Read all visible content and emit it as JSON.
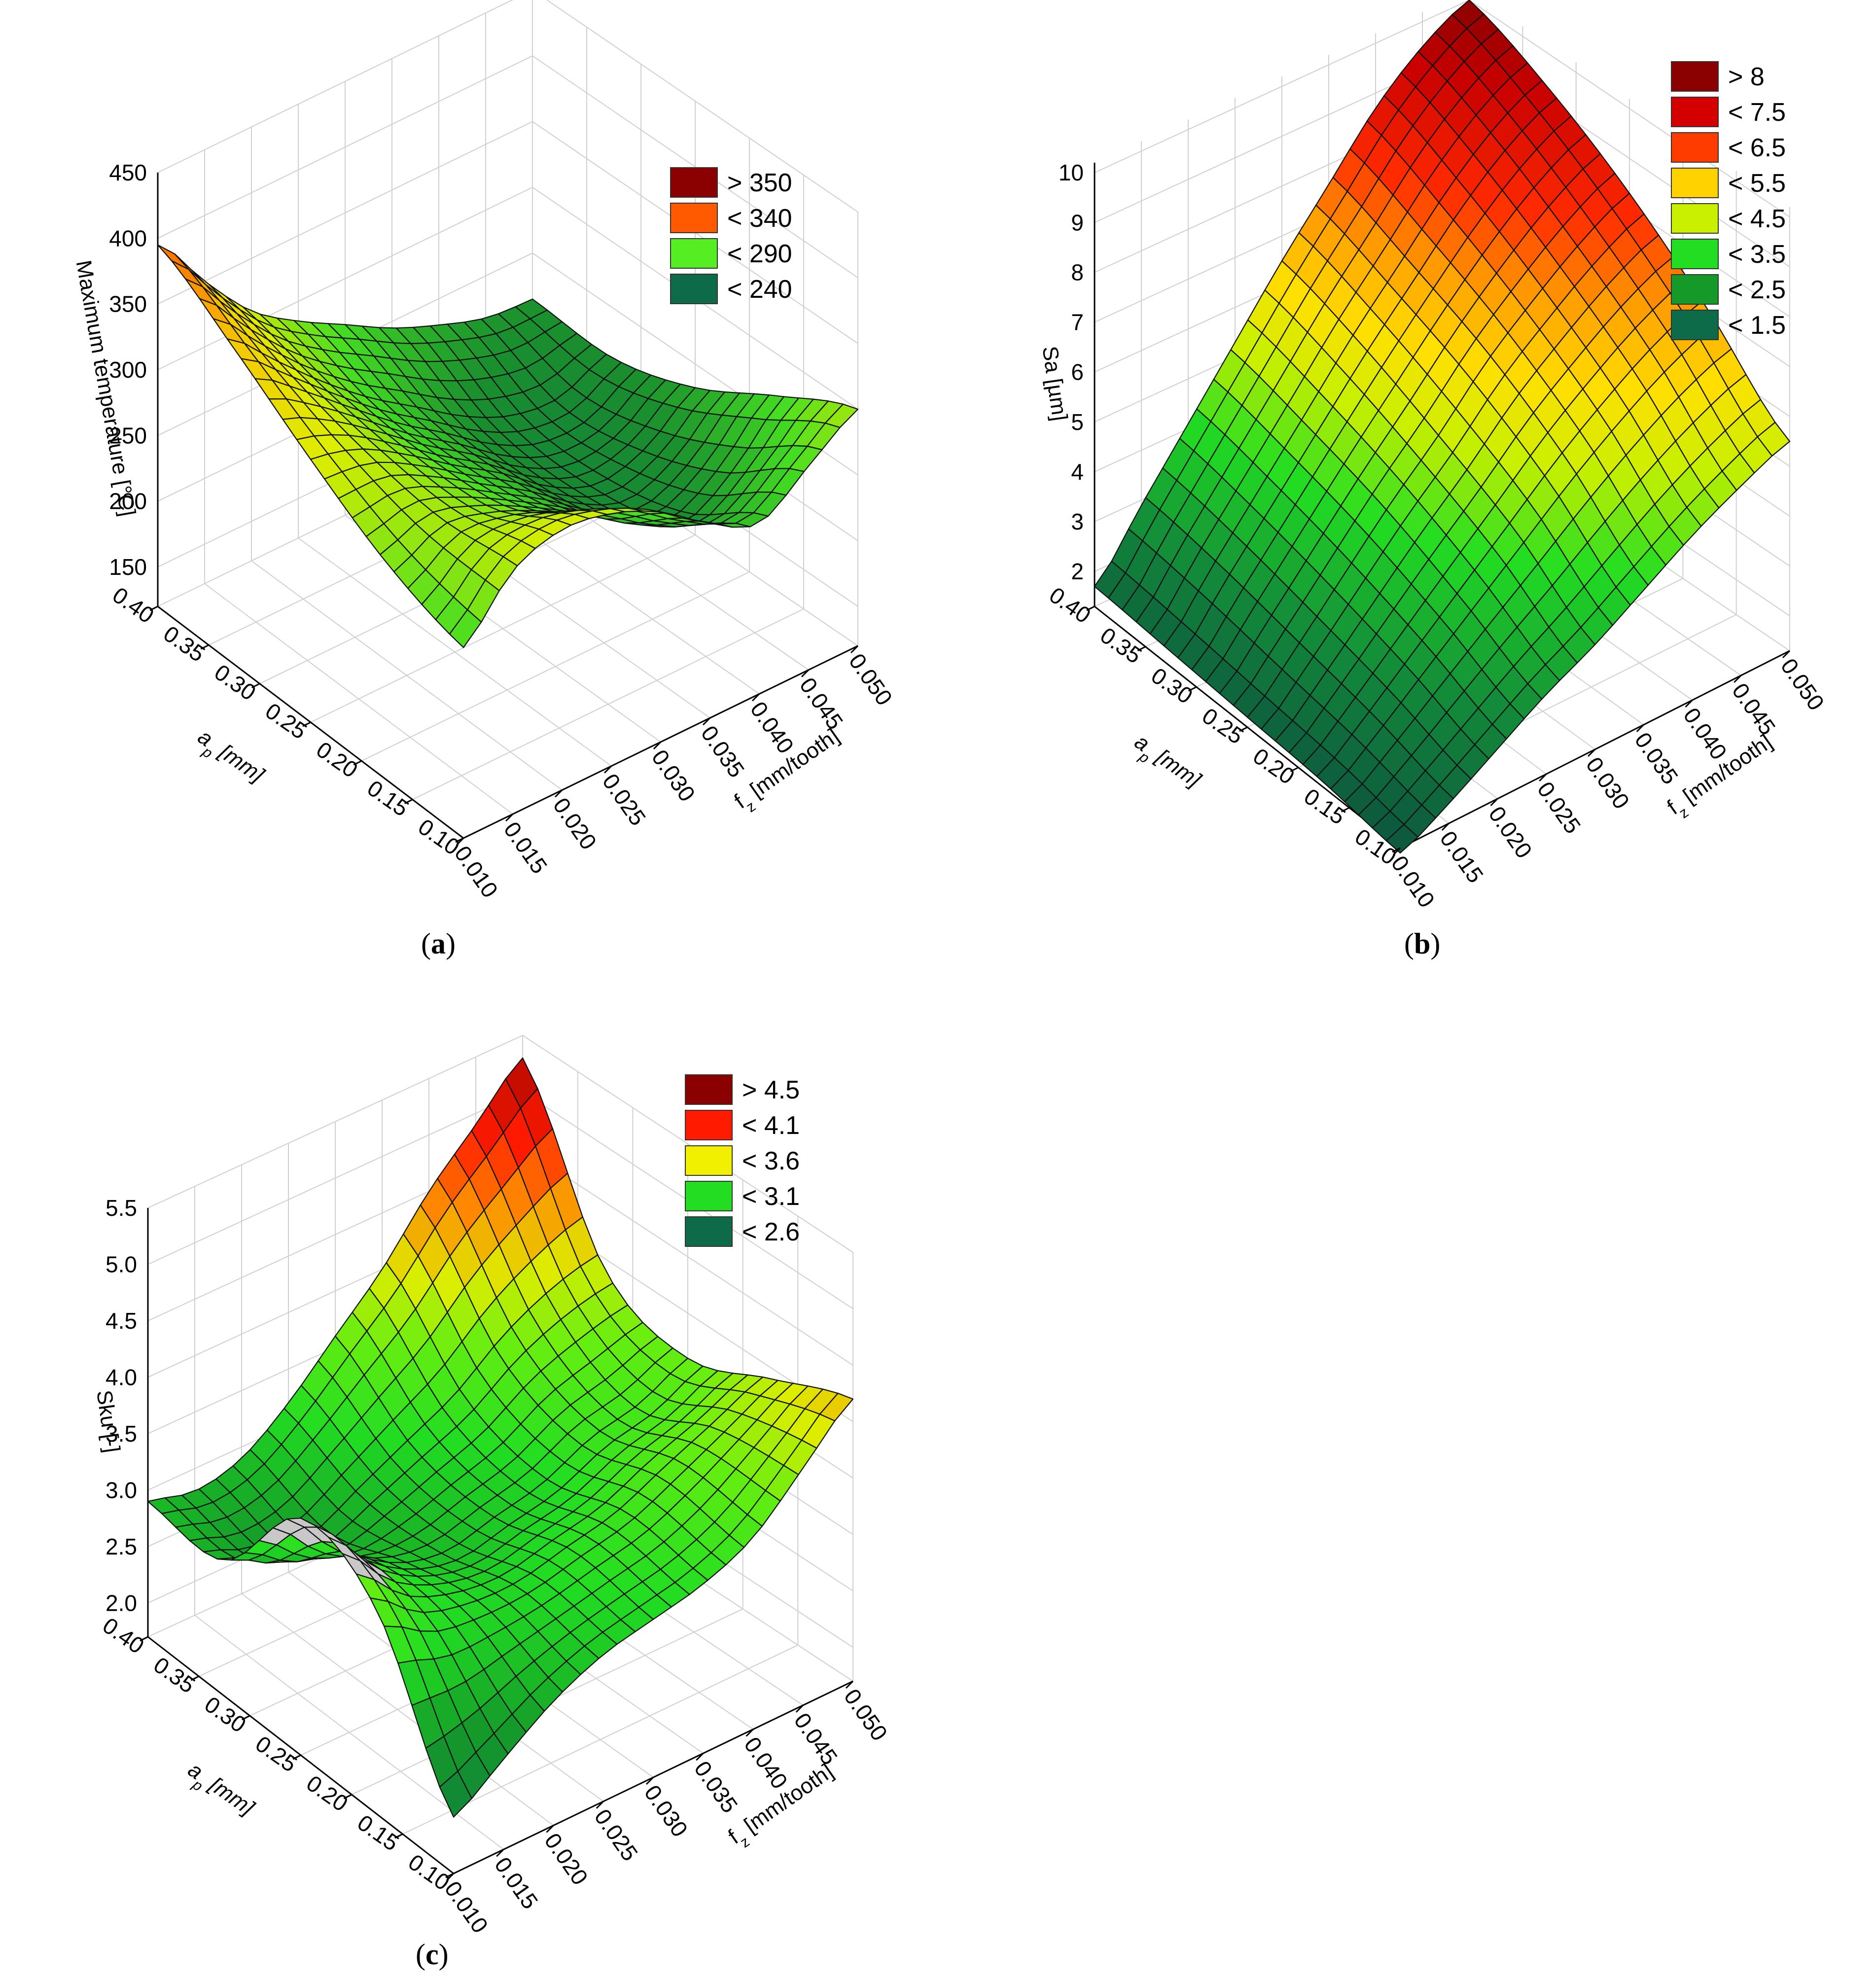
{
  "captions": [
    "a",
    "b",
    "c"
  ],
  "chart_data": [
    {
      "type": "surface",
      "id": "a",
      "zlabel": "Maximum temperature  [°C]",
      "xlabel": "f_z [mm/tooth]",
      "ylabel": "a_p [mm]",
      "x_ticks": [
        "0.010",
        "0.015",
        "0.020",
        "0.025",
        "0.030",
        "0.035",
        "0.040",
        "0.045",
        "0.050"
      ],
      "y_ticks": [
        "0.10",
        "0.15",
        "0.20",
        "0.25",
        "0.30",
        "0.35",
        "0.40"
      ],
      "z_ticks": [
        "150",
        "200",
        "250",
        "300",
        "350",
        "400",
        "450"
      ],
      "xlim": [
        0.01,
        0.05
      ],
      "ylim": [
        0.1,
        0.4
      ],
      "zlim": [
        120,
        450
      ],
      "legend": [
        {
          "label": "> 350",
          "color": "#8b0000"
        },
        {
          "label": "< 340",
          "color": "#ff5a00"
        },
        {
          "label": "< 290",
          "color": "#55ee22"
        },
        {
          "label": "< 240",
          "color": "#0d6b4a"
        }
      ],
      "corner_values": {
        "fz_0.010_ap_0.40": 395,
        "fz_0.050_ap_0.40": 215,
        "fz_0.010_ap_0.10": 265,
        "fz_0.050_ap_0.10": 300
      },
      "grid_z": [
        [
          265,
          305,
          318,
          312,
          295,
          268,
          250,
          275,
          300
        ],
        [
          285,
          300,
          290,
          272,
          250,
          225,
          210,
          232,
          268
        ],
        [
          320,
          310,
          288,
          262,
          238,
          210,
          195,
          205,
          232
        ],
        [
          360,
          328,
          295,
          265,
          240,
          215,
          198,
          195,
          212
        ],
        [
          395,
          350,
          310,
          285,
          265,
          245,
          230,
          218,
          215
        ]
      ]
    },
    {
      "type": "surface",
      "id": "b",
      "zlabel": "Sa [µm]",
      "xlabel": "f_z [mm/tooth]",
      "ylabel": "a_p [mm]",
      "x_ticks": [
        "0.010",
        "0.015",
        "0.020",
        "0.025",
        "0.030",
        "0.035",
        "0.040",
        "0.045",
        "0.050"
      ],
      "y_ticks": [
        "0.10",
        "0.15",
        "0.20",
        "0.25",
        "0.30",
        "0.35",
        "0.40"
      ],
      "z_ticks": [
        "2",
        "3",
        "4",
        "5",
        "6",
        "7",
        "8",
        "9",
        "10"
      ],
      "xlim": [
        0.01,
        0.05
      ],
      "ylim": [
        0.1,
        0.4
      ],
      "zlim": [
        1.3,
        10.2
      ],
      "legend": [
        {
          "label": "> 8",
          "color": "#8b0000"
        },
        {
          "label": "< 7.5",
          "color": "#d40000"
        },
        {
          "label": "< 6.5",
          "color": "#ff3c00"
        },
        {
          "label": "< 5.5",
          "color": "#ffd200"
        },
        {
          "label": "< 4.5",
          "color": "#c8f000"
        },
        {
          "label": "< 3.5",
          "color": "#22dd22"
        },
        {
          "label": "< 2.5",
          "color": "#159a2a"
        },
        {
          "label": "< 1.5",
          "color": "#0d6b4a"
        }
      ],
      "corner_values": {
        "fz_0.010_ap_0.40": 1.7,
        "fz_0.050_ap_0.40": 10.0,
        "fz_0.010_ap_0.10": 1.2,
        "fz_0.050_ap_0.10": 5.5
      },
      "grid_z": [
        [
          1.2,
          1.7,
          2.3,
          2.9,
          3.4,
          4.0,
          4.6,
          5.1,
          5.5
        ],
        [
          1.4,
          2.1,
          2.9,
          3.7,
          4.5,
          5.3,
          6.0,
          6.6,
          7.0
        ],
        [
          1.5,
          2.4,
          3.4,
          4.4,
          5.3,
          6.3,
          7.1,
          7.8,
          8.3
        ],
        [
          1.6,
          2.7,
          3.8,
          4.9,
          6.0,
          7.0,
          8.0,
          8.8,
          9.3
        ],
        [
          1.7,
          2.9,
          4.1,
          5.3,
          6.5,
          7.6,
          8.7,
          9.5,
          10.0
        ]
      ]
    },
    {
      "type": "surface",
      "id": "c",
      "zlabel": "Sku [-]",
      "xlabel": "f_z [mm/tooth]",
      "ylabel": "a_p [mm]",
      "x_ticks": [
        "0.010",
        "0.015",
        "0.020",
        "0.025",
        "0.030",
        "0.035",
        "0.040",
        "0.045",
        "0.050"
      ],
      "y_ticks": [
        "0.10",
        "0.15",
        "0.20",
        "0.25",
        "0.30",
        "0.35",
        "0.40"
      ],
      "z_ticks": [
        "2.0",
        "2.5",
        "3.0",
        "3.5",
        "4.0",
        "4.5",
        "5.0",
        "5.5"
      ],
      "xlim": [
        0.01,
        0.05
      ],
      "ylim": [
        0.1,
        0.4
      ],
      "zlim": [
        1.7,
        5.5
      ],
      "legend": [
        {
          "label": "> 4.5",
          "color": "#8b0000"
        },
        {
          "label": "< 4.1",
          "color": "#ff1a00"
        },
        {
          "label": "< 3.6",
          "color": "#f0f000"
        },
        {
          "label": "< 3.1",
          "color": "#22dd22"
        },
        {
          "label": "< 2.6",
          "color": "#0d6b4a"
        }
      ],
      "corner_values": {
        "fz_0.010_ap_0.40": 2.9,
        "fz_0.050_ap_0.40": 5.3,
        "fz_0.010_ap_0.10": 2.2,
        "fz_0.050_ap_0.10": 4.2
      },
      "grid_z": [
        [
          2.2,
          2.5,
          2.8,
          3.0,
          3.1,
          3.2,
          3.4,
          3.8,
          4.2
        ],
        [
          3.5,
          3.2,
          3.1,
          3.1,
          3.2,
          3.3,
          3.5,
          3.7,
          3.9
        ],
        [
          3.8,
          3.3,
          3.0,
          2.9,
          3.0,
          3.1,
          3.3,
          3.4,
          3.6
        ],
        [
          2.9,
          2.7,
          2.7,
          2.9,
          3.1,
          3.3,
          3.6,
          3.8,
          3.9
        ],
        [
          2.9,
          2.8,
          2.9,
          3.2,
          3.6,
          4.0,
          4.5,
          4.9,
          5.3
        ]
      ]
    }
  ]
}
